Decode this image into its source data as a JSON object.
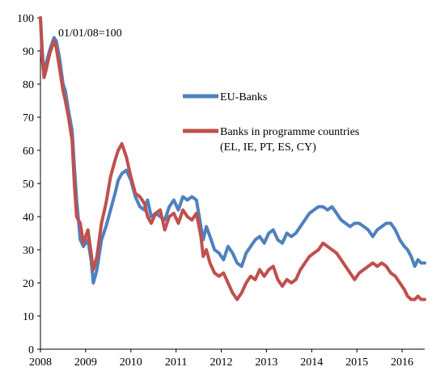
{
  "chart_data": {
    "type": "line",
    "title": "",
    "xlabel": "",
    "ylabel": "",
    "annotation": "01/01/08=100",
    "ylim": [
      0,
      100
    ],
    "xlim": [
      2008.0,
      2016.5
    ],
    "grid": false,
    "legend_position": "middle-right",
    "y_ticks": [
      "0",
      "10",
      "20",
      "30",
      "40",
      "50",
      "60",
      "70",
      "80",
      "90",
      "100"
    ],
    "x_ticks": [
      "2008",
      "2009",
      "2010",
      "2011",
      "2012",
      "2013",
      "2014",
      "2015",
      "2016"
    ],
    "series": [
      {
        "name": "EU-Banks",
        "color": "#4F81BD",
        "x": [
          2008.0,
          2008.04,
          2008.08,
          2008.12,
          2008.2,
          2008.3,
          2008.35,
          2008.42,
          2008.5,
          2008.55,
          2008.62,
          2008.7,
          2008.75,
          2008.8,
          2008.88,
          2008.95,
          2009.05,
          2009.12,
          2009.17,
          2009.25,
          2009.35,
          2009.45,
          2009.55,
          2009.65,
          2009.72,
          2009.8,
          2009.9,
          2010.0,
          2010.1,
          2010.2,
          2010.3,
          2010.37,
          2010.45,
          2010.55,
          2010.65,
          2010.75,
          2010.85,
          2010.95,
          2011.05,
          2011.15,
          2011.25,
          2011.35,
          2011.45,
          2011.55,
          2011.6,
          2011.67,
          2011.75,
          2011.85,
          2011.95,
          2012.05,
          2012.15,
          2012.25,
          2012.35,
          2012.45,
          2012.55,
          2012.65,
          2012.75,
          2012.85,
          2012.95,
          2013.05,
          2013.15,
          2013.25,
          2013.35,
          2013.45,
          2013.55,
          2013.65,
          2013.75,
          2013.85,
          2013.95,
          2014.05,
          2014.15,
          2014.25,
          2014.35,
          2014.45,
          2014.55,
          2014.65,
          2014.75,
          2014.85,
          2014.95,
          2015.05,
          2015.15,
          2015.25,
          2015.35,
          2015.45,
          2015.55,
          2015.65,
          2015.75,
          2015.85,
          2015.95,
          2016.05,
          2016.12,
          2016.2,
          2016.28,
          2016.35,
          2016.42,
          2016.5
        ],
        "y": [
          100,
          90,
          82,
          86,
          90,
          94,
          93,
          88,
          80,
          78,
          72,
          66,
          55,
          45,
          33,
          31,
          33,
          27,
          20,
          24,
          33,
          37,
          42,
          47,
          51,
          53,
          54,
          51,
          46,
          43,
          42,
          45,
          40,
          41,
          40,
          39,
          43,
          45,
          42,
          46,
          45,
          46,
          45,
          37,
          33,
          37,
          34,
          30,
          29,
          27,
          31,
          29,
          26,
          25,
          29,
          31,
          33,
          34,
          32,
          35,
          36,
          33,
          32,
          35,
          34,
          35,
          37,
          39,
          41,
          42,
          43,
          43,
          42,
          43,
          41,
          39,
          38,
          37,
          38,
          38,
          37,
          36,
          34,
          36,
          37,
          38,
          38,
          36,
          33,
          31,
          30,
          28,
          25,
          27,
          26,
          26
        ]
      },
      {
        "name": "Banks in programme countries (EL, IE, PT, ES, CY)",
        "color": "#C0504D",
        "x": [
          2008.0,
          2008.04,
          2008.08,
          2008.12,
          2008.2,
          2008.3,
          2008.35,
          2008.42,
          2008.5,
          2008.55,
          2008.62,
          2008.7,
          2008.75,
          2008.8,
          2008.88,
          2008.95,
          2009.05,
          2009.12,
          2009.17,
          2009.25,
          2009.35,
          2009.45,
          2009.55,
          2009.65,
          2009.72,
          2009.8,
          2009.9,
          2010.0,
          2010.1,
          2010.2,
          2010.3,
          2010.37,
          2010.45,
          2010.55,
          2010.65,
          2010.75,
          2010.85,
          2010.95,
          2011.05,
          2011.15,
          2011.25,
          2011.35,
          2011.45,
          2011.55,
          2011.6,
          2011.67,
          2011.75,
          2011.85,
          2011.95,
          2012.05,
          2012.15,
          2012.25,
          2012.35,
          2012.45,
          2012.55,
          2012.65,
          2012.75,
          2012.85,
          2012.95,
          2013.05,
          2013.15,
          2013.25,
          2013.35,
          2013.45,
          2013.55,
          2013.65,
          2013.75,
          2013.85,
          2013.95,
          2014.05,
          2014.15,
          2014.25,
          2014.35,
          2014.45,
          2014.55,
          2014.65,
          2014.75,
          2014.85,
          2014.95,
          2015.05,
          2015.15,
          2015.25,
          2015.35,
          2015.45,
          2015.55,
          2015.65,
          2015.75,
          2015.85,
          2015.95,
          2016.05,
          2016.12,
          2016.2,
          2016.28,
          2016.35,
          2016.42,
          2016.5
        ],
        "y": [
          100,
          88,
          82,
          84,
          89,
          93,
          91,
          85,
          78,
          75,
          70,
          63,
          50,
          40,
          38,
          32,
          36,
          29,
          24,
          28,
          38,
          44,
          52,
          57,
          60,
          62,
          58,
          52,
          47,
          46,
          44,
          40,
          38,
          41,
          42,
          36,
          40,
          41,
          38,
          42,
          40,
          39,
          41,
          34,
          28,
          30,
          26,
          23,
          22,
          23,
          20,
          17,
          15,
          17,
          20,
          22,
          21,
          24,
          22,
          24,
          25,
          21,
          19,
          21,
          20,
          21,
          24,
          26,
          28,
          29,
          30,
          32,
          31,
          30,
          29,
          27,
          25,
          23,
          21,
          23,
          24,
          25,
          26,
          25,
          26,
          25,
          23,
          22,
          20,
          18,
          16,
          15,
          15,
          16,
          15,
          15
        ]
      }
    ]
  }
}
